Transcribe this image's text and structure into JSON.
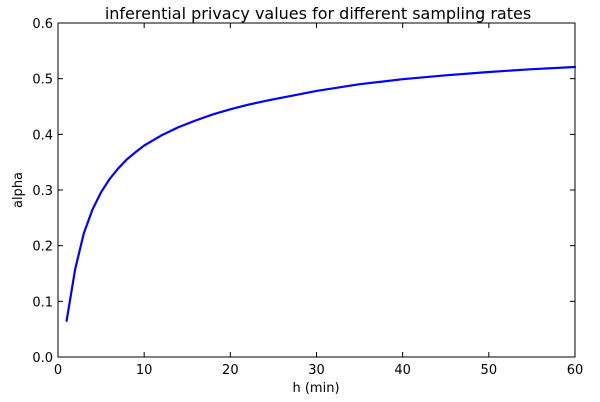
{
  "chart_data": {
    "type": "line",
    "title": "inferential privacy values for different sampling rates",
    "xlabel": "h (min)",
    "ylabel": "alpha",
    "xlim": [
      0,
      60
    ],
    "ylim": [
      0.0,
      0.6
    ],
    "xticks": [
      0,
      10,
      20,
      30,
      40,
      50,
      60
    ],
    "xtick_labels": [
      "0",
      "10",
      "20",
      "30",
      "40",
      "50",
      "60"
    ],
    "yticks": [
      0.0,
      0.1,
      0.2,
      0.3,
      0.4,
      0.5,
      0.6
    ],
    "ytick_labels": [
      "0.0",
      "0.1",
      "0.2",
      "0.3",
      "0.4",
      "0.5",
      "0.6"
    ],
    "grid": false,
    "series": [
      {
        "color": "#0000ff",
        "x": [
          1,
          2,
          3,
          4,
          5,
          6,
          7,
          8,
          9,
          10,
          12,
          14,
          16,
          18,
          20,
          22,
          25,
          28,
          30,
          35,
          40,
          45,
          50,
          55,
          60
        ],
        "y": [
          0.065,
          0.158,
          0.222,
          0.265,
          0.296,
          0.32,
          0.339,
          0.355,
          0.368,
          0.38,
          0.398,
          0.413,
          0.425,
          0.436,
          0.445,
          0.453,
          0.463,
          0.472,
          0.478,
          0.49,
          0.499,
          0.506,
          0.512,
          0.517,
          0.521
        ]
      }
    ]
  }
}
